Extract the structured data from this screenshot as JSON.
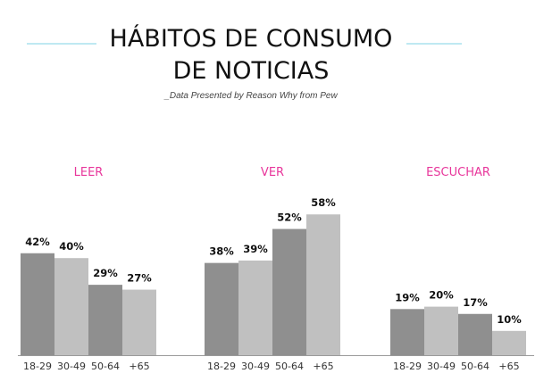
{
  "chart_data": {
    "type": "bar",
    "title_lines": [
      "HÁBITOS DE CONSUMO",
      "DE NOTICIAS"
    ],
    "subtitle": "_Data Presented by Reason Why from Pew",
    "categories": [
      "18-29",
      "30-49",
      "50-64",
      "+65"
    ],
    "groups": [
      {
        "name": "LEER",
        "values": [
          42,
          40,
          29,
          27
        ],
        "highlight_index": 0
      },
      {
        "name": "VER",
        "values": [
          38,
          39,
          52,
          58
        ]
      },
      {
        "name": "ESCUCHAR",
        "values": [
          19,
          20,
          17,
          10
        ]
      }
    ],
    "value_suffix": "%",
    "ylim": [
      0,
      65
    ],
    "grid": false,
    "legend": "none"
  },
  "colors": {
    "dark_bar": "#8f8f8f",
    "light_bar": "#c0c0c0",
    "accent": "#e8369b",
    "title_line": "#7fd3e6",
    "text": "#111111"
  }
}
